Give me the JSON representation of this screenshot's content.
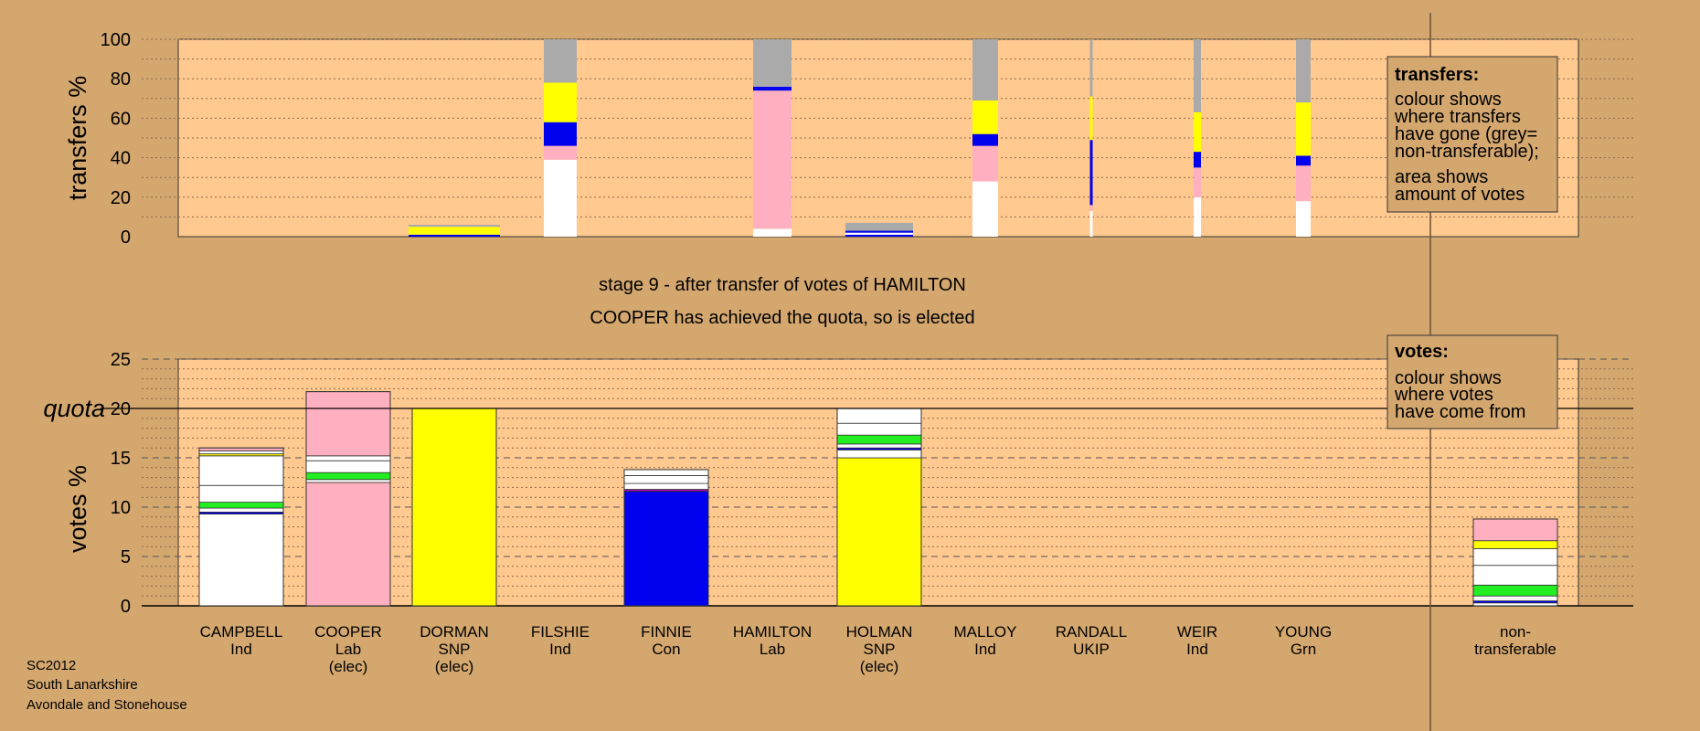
{
  "chart_data": {
    "type": "bar",
    "stage_line": "stage 9 - after transfer of votes of HAMILTON",
    "status_line": "COOPER has achieved the quota, so is elected",
    "colors": {
      "Ind": "#ffffff",
      "Lab": "#ffb0c0",
      "SNP": "#ffff00",
      "Con": "#0000ee",
      "Grn": "#22ee22",
      "UKIP": "#b000b0",
      "nontransferable": "#aaaaaa",
      "background": "#d4a76f",
      "plot_background": "#ffc990"
    },
    "candidates": [
      {
        "name": "CAMPBELL",
        "party": "Ind",
        "note": ""
      },
      {
        "name": "COOPER",
        "party": "Lab",
        "note": "(elec)"
      },
      {
        "name": "DORMAN",
        "party": "SNP",
        "note": "(elec)"
      },
      {
        "name": "FILSHIE",
        "party": "Ind",
        "note": ""
      },
      {
        "name": "FINNIE",
        "party": "Con",
        "note": ""
      },
      {
        "name": "HAMILTON",
        "party": "Lab",
        "note": ""
      },
      {
        "name": "HOLMAN",
        "party": "SNP",
        "note": "(elec)"
      },
      {
        "name": "MALLOY",
        "party": "Ind",
        "note": ""
      },
      {
        "name": "RANDALL",
        "party": "UKIP",
        "note": ""
      },
      {
        "name": "WEIR",
        "party": "Ind",
        "note": ""
      },
      {
        "name": "YOUNG",
        "party": "Grn",
        "note": ""
      },
      {
        "name": "non-",
        "party": "transferable",
        "note": ""
      }
    ],
    "transfers": {
      "ylabel": "transfers %",
      "ylim": [
        0,
        100
      ],
      "yticks": [
        0,
        20,
        40,
        60,
        80,
        100
      ],
      "bars": [
        {
          "candidate": "DORMAN",
          "segments": [
            {
              "party": "Con",
              "value": 1
            },
            {
              "party": "SNP",
              "value": 4
            },
            {
              "party": "nontransferable",
              "value": 1
            }
          ]
        },
        {
          "candidate": "FILSHIE",
          "segments": [
            {
              "party": "Ind",
              "value": 39
            },
            {
              "party": "Lab",
              "value": 7
            },
            {
              "party": "Con",
              "value": 12
            },
            {
              "party": "SNP",
              "value": 20
            },
            {
              "party": "nontransferable",
              "value": 22
            }
          ]
        },
        {
          "candidate": "HAMILTON",
          "segments": [
            {
              "party": "Ind",
              "value": 4
            },
            {
              "party": "Lab",
              "value": 70
            },
            {
              "party": "Con",
              "value": 2
            },
            {
              "party": "nontransferable",
              "value": 24
            }
          ]
        },
        {
          "candidate": "HOLMAN",
          "segments": [
            {
              "party": "Con",
              "value": 1
            },
            {
              "party": "Ind",
              "value": 1
            },
            {
              "party": "Con",
              "value": 1
            },
            {
              "party": "nontransferable",
              "value": 4
            }
          ]
        },
        {
          "candidate": "MALLOY",
          "segments": [
            {
              "party": "Ind",
              "value": 28
            },
            {
              "party": "Lab",
              "value": 18
            },
            {
              "party": "Con",
              "value": 6
            },
            {
              "party": "SNP",
              "value": 17
            },
            {
              "party": "nontransferable",
              "value": 31
            }
          ]
        },
        {
          "candidate": "RANDALL",
          "segments": [
            {
              "party": "Ind",
              "value": 13
            },
            {
              "party": "Lab",
              "value": 3
            },
            {
              "party": "Con",
              "value": 33
            },
            {
              "party": "SNP",
              "value": 22
            },
            {
              "party": "nontransferable",
              "value": 29
            }
          ]
        },
        {
          "candidate": "WEIR",
          "segments": [
            {
              "party": "Ind",
              "value": 20
            },
            {
              "party": "Lab",
              "value": 15
            },
            {
              "party": "Con",
              "value": 8
            },
            {
              "party": "SNP",
              "value": 20
            },
            {
              "party": "nontransferable",
              "value": 37
            }
          ]
        },
        {
          "candidate": "YOUNG",
          "segments": [
            {
              "party": "Ind",
              "value": 18
            },
            {
              "party": "Lab",
              "value": 18
            },
            {
              "party": "Con",
              "value": 5
            },
            {
              "party": "SNP",
              "value": 27
            },
            {
              "party": "nontransferable",
              "value": 32
            }
          ]
        }
      ]
    },
    "votes": {
      "ylabel": "votes %",
      "ylim": [
        0,
        25
      ],
      "yticks": [
        0,
        5,
        10,
        15,
        20,
        25
      ],
      "quota": 20,
      "quota_label": "quota",
      "bars": [
        {
          "candidate": "CAMPBELL",
          "segments": [
            {
              "party": "Ind",
              "value": 9.3
            },
            {
              "party": "Con",
              "value": 0.2
            },
            {
              "party": "Ind",
              "value": 0.4
            },
            {
              "party": "Grn",
              "value": 0.6
            },
            {
              "party": "Ind",
              "value": 1.7
            },
            {
              "party": "Ind",
              "value": 3.0
            },
            {
              "party": "SNP",
              "value": 0.2
            },
            {
              "party": "Ind",
              "value": 0.3
            },
            {
              "party": "Lab",
              "value": 0.3
            }
          ]
        },
        {
          "candidate": "COOPER",
          "segments": [
            {
              "party": "Lab",
              "value": 12.5
            },
            {
              "party": "Ind",
              "value": 0.3
            },
            {
              "party": "Grn",
              "value": 0.7
            },
            {
              "party": "Ind",
              "value": 1.2
            },
            {
              "party": "Ind",
              "value": 0.5
            },
            {
              "party": "Lab",
              "value": 6.5
            }
          ]
        },
        {
          "candidate": "DORMAN",
          "segments": [
            {
              "party": "SNP",
              "value": 20
            }
          ]
        },
        {
          "candidate": "FINNIE",
          "segments": [
            {
              "party": "Con",
              "value": 11.6
            },
            {
              "party": "UKIP",
              "value": 0.2
            },
            {
              "party": "Ind",
              "value": 0.6
            },
            {
              "party": "Ind",
              "value": 0.8
            },
            {
              "party": "Ind",
              "value": 0.6
            }
          ]
        },
        {
          "candidate": "HOLMAN",
          "segments": [
            {
              "party": "SNP",
              "value": 15.0
            },
            {
              "party": "Ind",
              "value": 0.8
            },
            {
              "party": "Con",
              "value": 0.2
            },
            {
              "party": "Ind",
              "value": 0.4
            },
            {
              "party": "Grn",
              "value": 0.9
            },
            {
              "party": "Ind",
              "value": 1.2
            },
            {
              "party": "Ind",
              "value": 1.5
            }
          ]
        },
        {
          "candidate": "non-",
          "segments": [
            {
              "party": "Ind",
              "value": 0.3
            },
            {
              "party": "Con",
              "value": 0.2
            },
            {
              "party": "Ind",
              "value": 0.5
            },
            {
              "party": "Grn",
              "value": 1.1
            },
            {
              "party": "Ind",
              "value": 2.0
            },
            {
              "party": "Ind",
              "value": 1.7
            },
            {
              "party": "SNP",
              "value": 0.8
            },
            {
              "party": "Lab",
              "value": 2.2
            }
          ]
        }
      ]
    },
    "legend_transfers": {
      "title": "transfers:",
      "lines1": [
        "colour shows",
        "where transfers",
        "have gone (grey=",
        "non-transferable);"
      ],
      "lines2": [
        "area shows",
        "amount of votes"
      ]
    },
    "legend_votes": {
      "title": "votes:",
      "lines1": [
        "colour shows",
        "where votes",
        "have come from"
      ]
    },
    "footer": [
      "SC2012",
      "South Lanarkshire",
      "Avondale and Stonehouse"
    ]
  }
}
